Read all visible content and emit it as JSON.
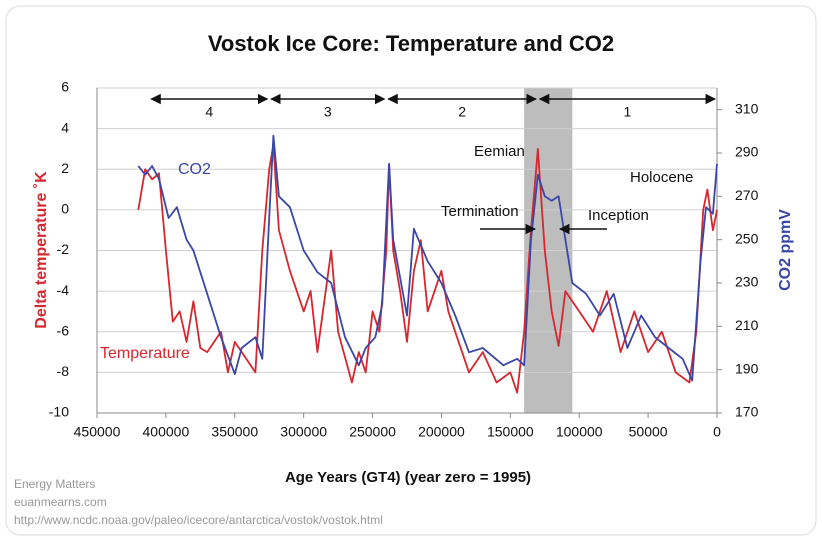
{
  "chart_data": {
    "type": "line",
    "title": "Vostok Ice Core: Temperature and CO2",
    "x_label": "Age Years (GT4) (year zero = 1995)",
    "y_label": "Delta temperature ˚K",
    "y2_label": "CO2 ppmV",
    "xlim": [
      450000,
      0
    ],
    "xticks": [
      450000,
      400000,
      350000,
      300000,
      250000,
      200000,
      150000,
      100000,
      50000,
      0
    ],
    "ylim": [
      -10,
      6
    ],
    "yticks": [
      -10,
      -8,
      -6,
      -4,
      -2,
      0,
      2,
      4,
      6
    ],
    "y2lim": [
      170,
      320
    ],
    "y2ticks": [
      170,
      190,
      210,
      230,
      250,
      270,
      290,
      310
    ],
    "grid": true,
    "shaded_xlim": [
      140000,
      105000
    ],
    "periods": [
      {
        "label": "4",
        "start": 412000,
        "end": 325000
      },
      {
        "label": "3",
        "start": 325000,
        "end": 240000
      },
      {
        "label": "2",
        "start": 240000,
        "end": 130000
      },
      {
        "label": "1",
        "start": 130000,
        "end": 0
      }
    ],
    "annotations": [
      "Eemian",
      "Holocene",
      "Termination",
      "Inception"
    ],
    "source": [
      "Energy Matters",
      "euanmearns.com",
      "http://www.ncdc.noaa.gov/paleo/icecore/antarctica/vostok/vostok.html"
    ],
    "series": [
      {
        "name": "Temperature",
        "color": "#d8262e",
        "x": [
          420000,
          415000,
          410000,
          405000,
          400000,
          395000,
          390000,
          385000,
          380000,
          375000,
          370000,
          360000,
          355000,
          350000,
          340000,
          335000,
          330000,
          325000,
          322000,
          318000,
          310000,
          300000,
          295000,
          290000,
          280000,
          275000,
          265000,
          260000,
          255000,
          250000,
          245000,
          240000,
          238000,
          235000,
          230000,
          225000,
          220000,
          215000,
          210000,
          200000,
          195000,
          190000,
          180000,
          170000,
          160000,
          150000,
          145000,
          140000,
          135000,
          130000,
          128000,
          125000,
          120000,
          115000,
          110000,
          100000,
          90000,
          80000,
          70000,
          60000,
          50000,
          40000,
          30000,
          20000,
          15000,
          10000,
          7000,
          3000,
          0
        ],
        "values": [
          0,
          2,
          1.5,
          1.8,
          -2,
          -5.5,
          -5,
          -6.5,
          -4.5,
          -6.8,
          -7,
          -6,
          -8,
          -6.5,
          -7.5,
          -8,
          -2,
          2,
          3.2,
          -1,
          -3,
          -5,
          -4,
          -7,
          -2,
          -6,
          -8.5,
          -7,
          -8,
          -5,
          -6,
          -2,
          2.2,
          -2,
          -4,
          -6.5,
          -3,
          -1.5,
          -5,
          -3,
          -5,
          -6,
          -8,
          -7,
          -8.5,
          -8,
          -9,
          -6,
          -1,
          3,
          1,
          -2,
          -5,
          -6.7,
          -4,
          -5,
          -6,
          -4,
          -7,
          -5,
          -7,
          -6,
          -8,
          -8.5,
          -6,
          0,
          1,
          -1,
          0
        ]
      },
      {
        "name": "CO2",
        "color": "#3b47a6",
        "axis": "y2",
        "x": [
          420000,
          415000,
          410000,
          405000,
          398000,
          392000,
          385000,
          380000,
          370000,
          360000,
          350000,
          345000,
          335000,
          330000,
          325000,
          322000,
          318000,
          310000,
          300000,
          290000,
          280000,
          270000,
          260000,
          255000,
          248000,
          243000,
          238000,
          235000,
          225000,
          220000,
          210000,
          200000,
          190000,
          180000,
          170000,
          155000,
          145000,
          140000,
          135000,
          130000,
          125000,
          120000,
          115000,
          110000,
          105000,
          95000,
          85000,
          75000,
          65000,
          55000,
          45000,
          35000,
          25000,
          18000,
          12000,
          8000,
          3000,
          0
        ],
        "values": [
          284,
          280,
          284,
          278,
          260,
          265,
          250,
          245,
          225,
          205,
          188,
          200,
          205,
          195,
          260,
          298,
          270,
          265,
          245,
          235,
          230,
          205,
          192,
          200,
          205,
          220,
          285,
          250,
          215,
          255,
          240,
          230,
          215,
          198,
          200,
          192,
          195,
          192,
          250,
          280,
          270,
          268,
          270,
          250,
          230,
          225,
          215,
          225,
          200,
          215,
          205,
          200,
          195,
          185,
          240,
          265,
          262,
          285
        ]
      }
    ]
  }
}
